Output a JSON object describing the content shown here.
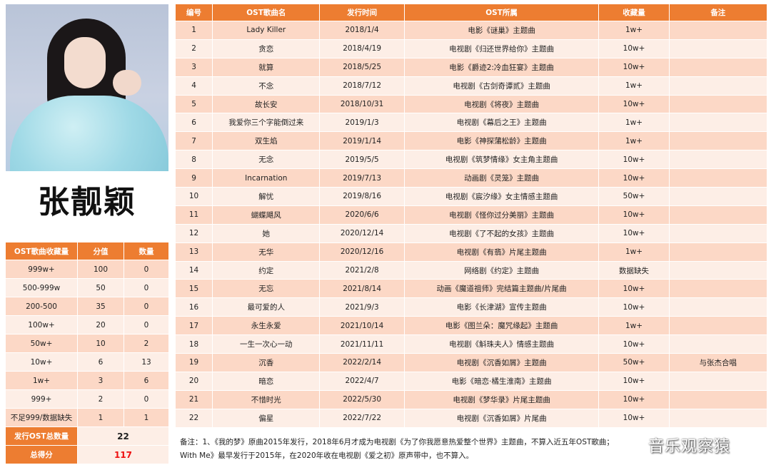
{
  "artist_name": "张靓颖",
  "ost_table": {
    "headers": [
      "编号",
      "OST歌曲名",
      "发行时间",
      "OST所属",
      "收藏量",
      "备注"
    ],
    "rows": [
      [
        "1",
        "Lady Killer",
        "2018/1/4",
        "电影《谜巢》主题曲",
        "1w+",
        ""
      ],
      [
        "2",
        "贪恋",
        "2018/4/19",
        "电视剧《归还世界给你》主题曲",
        "10w+",
        ""
      ],
      [
        "3",
        "就算",
        "2018/5/25",
        "电影《爵迹2:冷血狂宴》主题曲",
        "10w+",
        ""
      ],
      [
        "4",
        "不念",
        "2018/7/12",
        "电视剧《古剑奇谭贰》主题曲",
        "1w+",
        ""
      ],
      [
        "5",
        "故长安",
        "2018/10/31",
        "电视剧《将夜》主题曲",
        "10w+",
        ""
      ],
      [
        "6",
        "我爱你三个字能倒过来",
        "2019/1/3",
        "电视剧《幕后之王》主题曲",
        "1w+",
        ""
      ],
      [
        "7",
        "双生焰",
        "2019/1/14",
        "电影《神探蒲松龄》主题曲",
        "1w+",
        ""
      ],
      [
        "8",
        "无念",
        "2019/5/5",
        "电视剧《筑梦情缘》女主角主题曲",
        "10w+",
        ""
      ],
      [
        "9",
        "Incarnation",
        "2019/7/13",
        "动画剧《灵笼》主题曲",
        "10w+",
        ""
      ],
      [
        "10",
        "解忧",
        "2019/8/16",
        "电视剧《宸汐缘》女主情感主题曲",
        "50w+",
        ""
      ],
      [
        "11",
        "蝴蝶飓风",
        "2020/6/6",
        "电视剧《怪你过分美丽》主题曲",
        "10w+",
        ""
      ],
      [
        "12",
        "她",
        "2020/12/14",
        "电视剧《了不起的女孩》主题曲",
        "10w+",
        ""
      ],
      [
        "13",
        "无华",
        "2020/12/16",
        "电视剧《有翡》片尾主题曲",
        "1w+",
        ""
      ],
      [
        "14",
        "约定",
        "2021/2/8",
        "网络剧《约定》主题曲",
        "数据缺失",
        ""
      ],
      [
        "15",
        "无忘",
        "2021/8/14",
        "动画《魔道祖师》完结篇主题曲/片尾曲",
        "10w+",
        ""
      ],
      [
        "16",
        "最可爱的人",
        "2021/9/3",
        "电影《长津湖》宣传主题曲",
        "10w+",
        ""
      ],
      [
        "17",
        "永生永爱",
        "2021/10/14",
        "电影《图兰朵：魔咒缘起》主题曲",
        "1w+",
        ""
      ],
      [
        "18",
        "一生一次心一动",
        "2021/11/11",
        "电视剧《斛珠夫人》情感主题曲",
        "10w+",
        ""
      ],
      [
        "19",
        "沉香",
        "2022/2/14",
        "电视剧《沉香如屑》主题曲",
        "50w+",
        "与张杰合唱"
      ],
      [
        "20",
        "暗恋",
        "2022/4/7",
        "电影《暗恋·橘生淮南》主题曲",
        "10w+",
        ""
      ],
      [
        "21",
        "不惜时光",
        "2022/5/30",
        "电视剧《梦华录》片尾主题曲",
        "10w+",
        ""
      ],
      [
        "22",
        "偏星",
        "2022/7/22",
        "电视剧《沉香如屑》片尾曲",
        "10w+",
        ""
      ]
    ]
  },
  "score_table": {
    "headers": [
      "OST歌曲收藏量",
      "分值",
      "数量"
    ],
    "rows": [
      [
        "999w+",
        "100",
        "0"
      ],
      [
        "500-999w",
        "50",
        "0"
      ],
      [
        "200-500",
        "35",
        "0"
      ],
      [
        "100w+",
        "20",
        "0"
      ],
      [
        "50w+",
        "10",
        "2"
      ],
      [
        "10w+",
        "6",
        "13"
      ],
      [
        "1w+",
        "3",
        "6"
      ],
      [
        "999+",
        "2",
        "0"
      ],
      [
        "不足999/数据缺失",
        "1",
        "1"
      ]
    ],
    "summary": [
      {
        "label": "发行OST总数量",
        "value": "22"
      },
      {
        "label": "总得分",
        "value": "117"
      }
    ]
  },
  "note": {
    "line1": "备注：1、《我的梦》原曲2015年发行，2018年6月才成为电视剧《为了你我愿意热爱整个世界》主题曲，不算入近五年OST歌曲；",
    "line2": "With Me》最早发行于2015年，在2020年收在电视剧《爱之初》原声带中，也不算入。"
  },
  "watermark": "音乐观察猿",
  "colors": {
    "header_orange": "#ed7d31",
    "row_dark": "#fcd8c6",
    "row_light": "#fdeee6",
    "total_red": "#e11111"
  }
}
